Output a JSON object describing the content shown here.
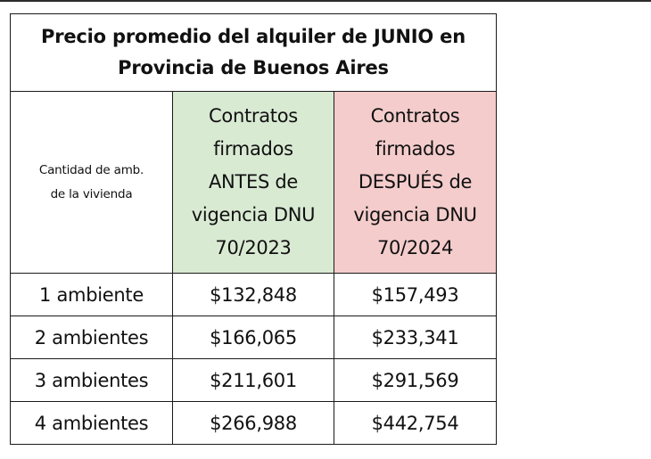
{
  "chart_data": {
    "type": "table",
    "title_lines": [
      "Precio promedio del alquiler de JUNIO en",
      "Provincia de Buenos Aires"
    ],
    "row_header_label_lines": [
      "Cantidad de amb.",
      "de la vivienda"
    ],
    "columns": [
      {
        "label_lines": [
          "Contratos",
          "firmados",
          "ANTES de",
          "vigencia DNU",
          "70/2023"
        ],
        "background": "#d9ead3"
      },
      {
        "label_lines": [
          "Contratos",
          "firmados",
          "DESPUÉS de",
          "vigencia DNU",
          "70/2024"
        ],
        "background": "#f4cccc"
      }
    ],
    "rows": [
      {
        "label": "1 ambiente",
        "values": [
          "$132,848",
          "$157,493"
        ]
      },
      {
        "label": "2 ambientes",
        "values": [
          "$166,065",
          "$233,341"
        ]
      },
      {
        "label": "3 ambientes",
        "values": [
          "$211,601",
          "$291,569"
        ]
      },
      {
        "label": "4 ambientes",
        "values": [
          "$266,988",
          "$442,754"
        ]
      }
    ],
    "values_numeric": {
      "before": [
        132848,
        166065,
        211601,
        266988
      ],
      "after": [
        157493,
        233341,
        291569,
        442754
      ]
    }
  }
}
